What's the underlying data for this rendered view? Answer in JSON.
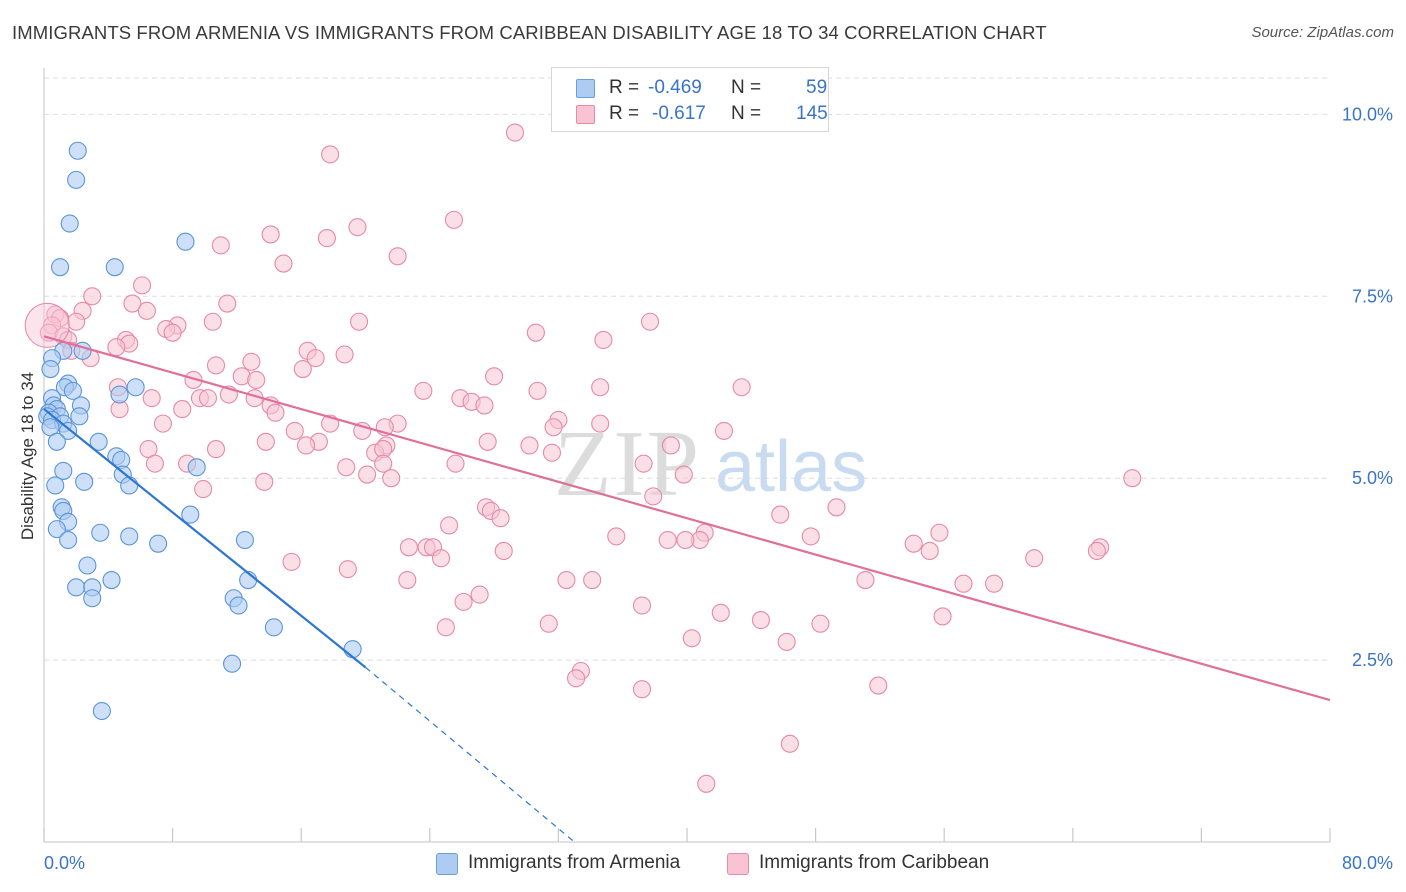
{
  "title": "IMMIGRANTS FROM ARMENIA VS IMMIGRANTS FROM CARIBBEAN DISABILITY AGE 18 TO 34 CORRELATION CHART",
  "source": "Source: ZipAtlas.com",
  "watermark": {
    "zip": "ZIP",
    "atlas": "atlas"
  },
  "legend": {
    "rows": [
      {
        "r_label": "R =",
        "r_value": "-0.469",
        "n_label": "N =",
        "n_value": "59",
        "color": "#a8c8f0"
      },
      {
        "r_label": "R =",
        "r_value": "-0.617",
        "n_label": "N =",
        "n_value": "145",
        "color": "#f5b8cb"
      }
    ]
  },
  "colors": {
    "armenia_fill": "#aecbf2",
    "armenia_stroke": "#5b95d8",
    "armenia_line": "#2e77d0",
    "caribbean_fill": "#f8c4d4",
    "caribbean_stroke": "#e58aa8",
    "caribbean_line": "#e07098",
    "grid": "#dedede",
    "tick_label": "#3a74c9"
  },
  "chart_data": {
    "type": "scatter",
    "title": "IMMIGRANTS FROM ARMENIA VS IMMIGRANTS FROM CARIBBEAN DISABILITY AGE 18 TO 34 CORRELATION CHART",
    "xlabel": "",
    "ylabel": "Disability Age 18 to 34",
    "xlim": [
      0,
      80
    ],
    "ylim": [
      0,
      10.5
    ],
    "x_tick_labels": [
      "0.0%",
      "80.0%"
    ],
    "y_ticks": [
      2.5,
      5.0,
      7.5,
      10.0
    ],
    "y_tick_labels": [
      "2.5%",
      "5.0%",
      "7.5%",
      "10.0%"
    ],
    "grid": true,
    "legend_placement": "bottom",
    "series": [
      {
        "name": "Immigrants from Armenia",
        "color": "#aecbf2",
        "trend": {
          "x": [
            0.0,
            20.0
          ],
          "y": [
            5.95,
            2.4
          ],
          "dashed_to": [
            33.0,
            0.0
          ]
        },
        "points": [
          [
            2.1,
            9.5
          ],
          [
            2.0,
            9.1
          ],
          [
            1.6,
            8.5
          ],
          [
            8.8,
            8.25
          ],
          [
            1.0,
            7.9
          ],
          [
            4.4,
            7.9
          ],
          [
            2.4,
            6.75
          ],
          [
            1.2,
            6.75
          ],
          [
            0.5,
            6.65
          ],
          [
            0.4,
            6.5
          ],
          [
            1.5,
            6.3
          ],
          [
            1.3,
            6.25
          ],
          [
            1.8,
            6.2
          ],
          [
            5.7,
            6.25
          ],
          [
            4.7,
            6.15
          ],
          [
            0.5,
            6.1
          ],
          [
            0.6,
            6.0
          ],
          [
            0.8,
            5.95
          ],
          [
            2.3,
            6.0
          ],
          [
            0.3,
            5.9
          ],
          [
            0.2,
            5.85
          ],
          [
            1.0,
            5.85
          ],
          [
            0.5,
            5.8
          ],
          [
            1.2,
            5.75
          ],
          [
            2.2,
            5.85
          ],
          [
            0.4,
            5.7
          ],
          [
            1.5,
            5.65
          ],
          [
            0.8,
            5.5
          ],
          [
            3.4,
            5.5
          ],
          [
            4.5,
            5.3
          ],
          [
            4.8,
            5.25
          ],
          [
            1.2,
            5.1
          ],
          [
            9.5,
            5.15
          ],
          [
            4.9,
            5.05
          ],
          [
            5.3,
            4.9
          ],
          [
            0.7,
            4.9
          ],
          [
            2.5,
            4.95
          ],
          [
            1.1,
            4.6
          ],
          [
            1.2,
            4.55
          ],
          [
            9.1,
            4.5
          ],
          [
            1.5,
            4.4
          ],
          [
            0.8,
            4.3
          ],
          [
            3.5,
            4.25
          ],
          [
            5.3,
            4.2
          ],
          [
            12.5,
            4.15
          ],
          [
            7.1,
            4.1
          ],
          [
            1.5,
            4.15
          ],
          [
            2.7,
            3.8
          ],
          [
            4.2,
            3.6
          ],
          [
            12.7,
            3.6
          ],
          [
            2.0,
            3.5
          ],
          [
            3.0,
            3.5
          ],
          [
            3.0,
            3.35
          ],
          [
            11.8,
            3.35
          ],
          [
            12.1,
            3.25
          ],
          [
            14.3,
            2.95
          ],
          [
            19.2,
            2.65
          ],
          [
            11.7,
            2.45
          ],
          [
            3.6,
            1.8
          ]
        ]
      },
      {
        "name": "Immigrants from Caribbean",
        "color": "#f8c4d4",
        "trend": {
          "x": [
            0.0,
            80.0
          ],
          "y": [
            6.95,
            1.95
          ]
        },
        "points": [
          [
            29.3,
            9.75
          ],
          [
            17.8,
            9.45
          ],
          [
            25.5,
            8.55
          ],
          [
            19.5,
            8.45
          ],
          [
            14.1,
            8.35
          ],
          [
            17.6,
            8.3
          ],
          [
            11.0,
            8.2
          ],
          [
            22.0,
            8.05
          ],
          [
            14.9,
            7.95
          ],
          [
            6.1,
            7.65
          ],
          [
            3.0,
            7.5
          ],
          [
            5.5,
            7.4
          ],
          [
            11.4,
            7.4
          ],
          [
            6.4,
            7.3
          ],
          [
            2.4,
            7.3
          ],
          [
            0.7,
            7.25
          ],
          [
            1.0,
            7.2
          ],
          [
            2.0,
            7.15
          ],
          [
            0.5,
            7.1
          ],
          [
            10.5,
            7.15
          ],
          [
            19.6,
            7.15
          ],
          [
            37.7,
            7.15
          ],
          [
            8.3,
            7.1
          ],
          [
            7.6,
            7.05
          ],
          [
            8.0,
            7.0
          ],
          [
            0.3,
            7.0
          ],
          [
            1.2,
            6.95
          ],
          [
            1.5,
            6.9
          ],
          [
            30.6,
            7.0
          ],
          [
            34.8,
            6.9
          ],
          [
            5.1,
            6.9
          ],
          [
            5.3,
            6.85
          ],
          [
            4.5,
            6.8
          ],
          [
            1.7,
            6.75
          ],
          [
            16.4,
            6.75
          ],
          [
            18.7,
            6.7
          ],
          [
            2.9,
            6.65
          ],
          [
            16.9,
            6.65
          ],
          [
            12.9,
            6.6
          ],
          [
            10.7,
            6.55
          ],
          [
            16.1,
            6.5
          ],
          [
            12.3,
            6.4
          ],
          [
            13.2,
            6.35
          ],
          [
            28.0,
            6.4
          ],
          [
            9.3,
            6.35
          ],
          [
            4.6,
            6.25
          ],
          [
            34.6,
            6.25
          ],
          [
            43.4,
            6.25
          ],
          [
            23.6,
            6.2
          ],
          [
            30.7,
            6.2
          ],
          [
            11.5,
            6.15
          ],
          [
            13.1,
            6.1
          ],
          [
            6.7,
            6.1
          ],
          [
            9.7,
            6.1
          ],
          [
            10.2,
            6.1
          ],
          [
            25.9,
            6.1
          ],
          [
            26.6,
            6.05
          ],
          [
            27.4,
            6.0
          ],
          [
            14.1,
            6.0
          ],
          [
            4.7,
            5.95
          ],
          [
            8.6,
            5.95
          ],
          [
            14.4,
            5.9
          ],
          [
            32.0,
            5.8
          ],
          [
            22.0,
            5.75
          ],
          [
            17.8,
            5.75
          ],
          [
            34.6,
            5.75
          ],
          [
            7.4,
            5.75
          ],
          [
            31.7,
            5.7
          ],
          [
            21.2,
            5.7
          ],
          [
            42.3,
            5.65
          ],
          [
            15.6,
            5.65
          ],
          [
            19.8,
            5.65
          ],
          [
            13.8,
            5.5
          ],
          [
            17.1,
            5.5
          ],
          [
            27.6,
            5.5
          ],
          [
            16.3,
            5.45
          ],
          [
            21.3,
            5.45
          ],
          [
            30.2,
            5.45
          ],
          [
            39.0,
            5.45
          ],
          [
            10.7,
            5.4
          ],
          [
            6.5,
            5.4
          ],
          [
            20.6,
            5.35
          ],
          [
            21.1,
            5.4
          ],
          [
            31.6,
            5.35
          ],
          [
            21.1,
            5.2
          ],
          [
            6.9,
            5.2
          ],
          [
            8.9,
            5.2
          ],
          [
            25.6,
            5.2
          ],
          [
            37.3,
            5.2
          ],
          [
            18.8,
            5.15
          ],
          [
            20.1,
            5.05
          ],
          [
            21.6,
            5.0
          ],
          [
            39.8,
            5.05
          ],
          [
            67.7,
            5.0
          ],
          [
            13.7,
            4.95
          ],
          [
            9.9,
            4.85
          ],
          [
            37.9,
            4.75
          ],
          [
            27.5,
            4.6
          ],
          [
            49.3,
            4.6
          ],
          [
            27.8,
            4.55
          ],
          [
            45.8,
            4.5
          ],
          [
            28.4,
            4.45
          ],
          [
            25.2,
            4.35
          ],
          [
            41.1,
            4.25
          ],
          [
            55.7,
            4.25
          ],
          [
            35.6,
            4.2
          ],
          [
            47.7,
            4.2
          ],
          [
            40.8,
            4.15
          ],
          [
            38.8,
            4.15
          ],
          [
            39.9,
            4.15
          ],
          [
            22.7,
            4.05
          ],
          [
            23.8,
            4.05
          ],
          [
            24.2,
            4.05
          ],
          [
            54.1,
            4.1
          ],
          [
            65.7,
            4.05
          ],
          [
            65.5,
            4.0
          ],
          [
            28.6,
            4.0
          ],
          [
            55.1,
            4.0
          ],
          [
            24.7,
            3.9
          ],
          [
            15.4,
            3.85
          ],
          [
            61.6,
            3.9
          ],
          [
            18.9,
            3.75
          ],
          [
            22.6,
            3.6
          ],
          [
            32.5,
            3.6
          ],
          [
            34.1,
            3.6
          ],
          [
            51.1,
            3.6
          ],
          [
            57.2,
            3.55
          ],
          [
            59.1,
            3.55
          ],
          [
            27.1,
            3.4
          ],
          [
            26.1,
            3.3
          ],
          [
            37.2,
            3.25
          ],
          [
            42.1,
            3.15
          ],
          [
            55.9,
            3.1
          ],
          [
            44.6,
            3.05
          ],
          [
            48.3,
            3.0
          ],
          [
            31.4,
            3.0
          ],
          [
            25.0,
            2.95
          ],
          [
            40.3,
            2.8
          ],
          [
            46.2,
            2.75
          ],
          [
            33.4,
            2.35
          ],
          [
            33.1,
            2.25
          ],
          [
            37.2,
            2.1
          ],
          [
            51.9,
            2.15
          ],
          [
            46.4,
            1.35
          ],
          [
            41.2,
            0.8
          ]
        ]
      }
    ]
  }
}
